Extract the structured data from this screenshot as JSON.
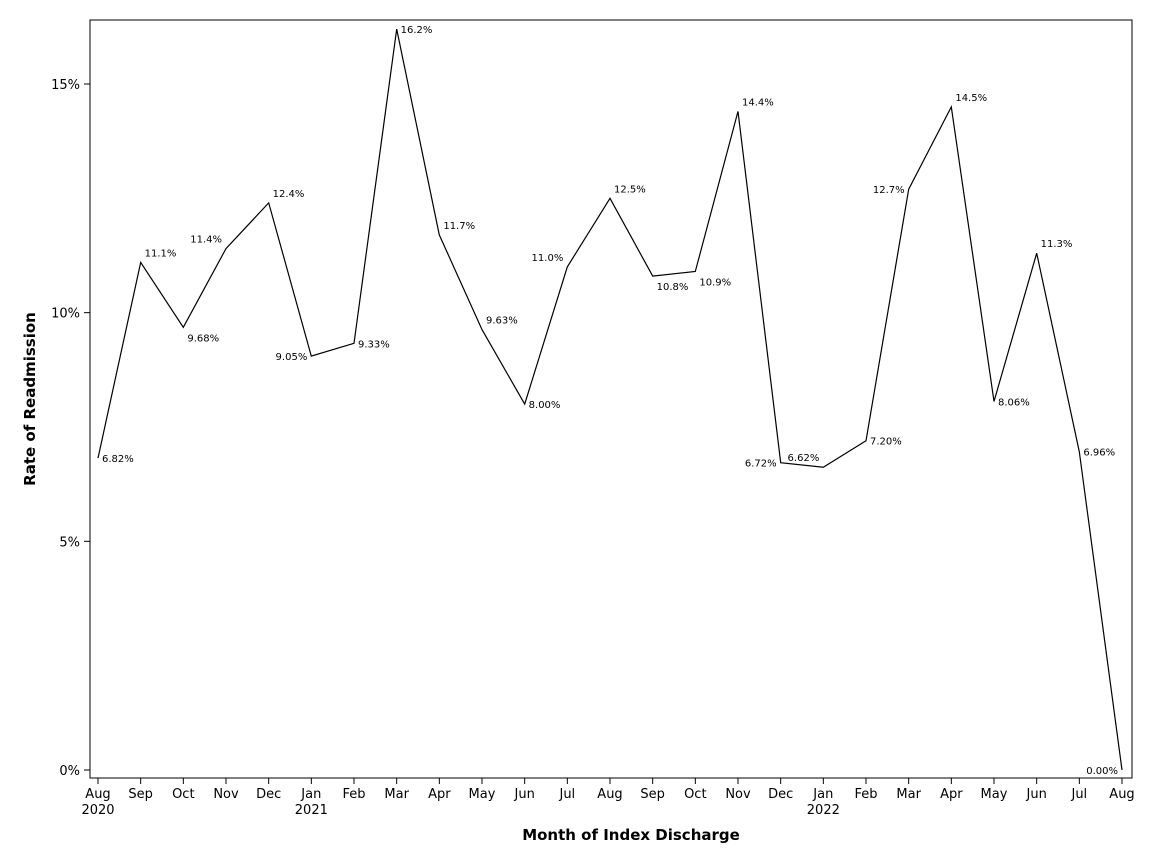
{
  "chart_data": {
    "type": "line",
    "title": "",
    "xlabel": "Month of Index Discharge",
    "ylabel": "Rate of Readmission",
    "ylim": [
      0,
      16.5
    ],
    "grid": false,
    "yticks": [
      {
        "value": 0,
        "label": "0%"
      },
      {
        "value": 5,
        "label": "5%"
      },
      {
        "value": 10,
        "label": "10%"
      },
      {
        "value": 15,
        "label": "15%"
      }
    ],
    "x": [
      {
        "month": "Aug",
        "year": "2020",
        "value": 6.82,
        "label": "6.82%",
        "label_pos": "right"
      },
      {
        "month": "Sep",
        "year": "",
        "value": 11.1,
        "label": "11.1%",
        "label_pos": "above-right"
      },
      {
        "month": "Oct",
        "year": "",
        "value": 9.68,
        "label": "9.68%",
        "label_pos": "below-right"
      },
      {
        "month": "Nov",
        "year": "",
        "value": 11.4,
        "label": "11.4%",
        "label_pos": "above-left"
      },
      {
        "month": "Dec",
        "year": "",
        "value": 12.4,
        "label": "12.4%",
        "label_pos": "above-right"
      },
      {
        "month": "Jan",
        "year": "2021",
        "value": 9.05,
        "label": "9.05%",
        "label_pos": "left"
      },
      {
        "month": "Feb",
        "year": "",
        "value": 9.33,
        "label": "9.33%",
        "label_pos": "right"
      },
      {
        "month": "Mar",
        "year": "",
        "value": 16.2,
        "label": "16.2%",
        "label_pos": "right"
      },
      {
        "month": "Apr",
        "year": "",
        "value": 11.7,
        "label": "11.7%",
        "label_pos": "above-right"
      },
      {
        "month": "May",
        "year": "",
        "value": 9.63,
        "label": "9.63%",
        "label_pos": "above-right"
      },
      {
        "month": "Jun",
        "year": "",
        "value": 8.0,
        "label": "8.00%",
        "label_pos": "right"
      },
      {
        "month": "Jul",
        "year": "",
        "value": 11.0,
        "label": "11.0%",
        "label_pos": "above-left"
      },
      {
        "month": "Aug",
        "year": "",
        "value": 12.5,
        "label": "12.5%",
        "label_pos": "above-right"
      },
      {
        "month": "Sep",
        "year": "",
        "value": 10.8,
        "label": "10.8%",
        "label_pos": "below-right"
      },
      {
        "month": "Oct",
        "year": "",
        "value": 10.9,
        "label": "10.9%",
        "label_pos": "below-right"
      },
      {
        "month": "Nov",
        "year": "",
        "value": 14.4,
        "label": "14.4%",
        "label_pos": "above-right"
      },
      {
        "month": "Dec",
        "year": "",
        "value": 6.72,
        "label": "6.72%",
        "label_pos": "left"
      },
      {
        "month": "Jan",
        "year": "2022",
        "value": 6.62,
        "label": "6.62%",
        "label_pos": "above-left"
      },
      {
        "month": "Feb",
        "year": "",
        "value": 7.2,
        "label": "7.20%",
        "label_pos": "right"
      },
      {
        "month": "Mar",
        "year": "",
        "value": 12.7,
        "label": "12.7%",
        "label_pos": "left"
      },
      {
        "month": "Apr",
        "year": "",
        "value": 14.5,
        "label": "14.5%",
        "label_pos": "above-right"
      },
      {
        "month": "May",
        "year": "",
        "value": 8.06,
        "label": "8.06%",
        "label_pos": "right"
      },
      {
        "month": "Jun",
        "year": "",
        "value": 11.3,
        "label": "11.3%",
        "label_pos": "above-right"
      },
      {
        "month": "Jul",
        "year": "",
        "value": 6.96,
        "label": "6.96%",
        "label_pos": "right"
      },
      {
        "month": "Aug",
        "year": "",
        "value": 0.0,
        "label": "0.00%",
        "label_pos": "left"
      }
    ],
    "colors": {
      "line": "#000000",
      "frame": "#000000"
    }
  }
}
